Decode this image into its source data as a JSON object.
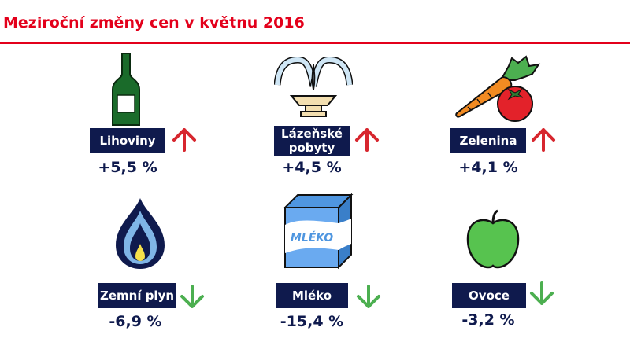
{
  "title": "Meziroční změny cen v květnu 2016",
  "colors": {
    "accent": "#e3001b",
    "label_bg": "#0f1a4d",
    "up": "#d7262e",
    "down": "#4caf50"
  },
  "items": [
    {
      "label": "Lihoviny",
      "value": "+5,5 %",
      "direction": "up",
      "icon": "bottle-icon"
    },
    {
      "label": "Lázeňské pobyty",
      "value": "+4,5 %",
      "direction": "up",
      "icon": "fountain-icon"
    },
    {
      "label": "Zelenina",
      "value": "+4,1 %",
      "direction": "up",
      "icon": "vegetables-icon"
    },
    {
      "label": "Zemní plyn",
      "value": "-6,9 %",
      "direction": "down",
      "icon": "gas-flame-icon"
    },
    {
      "label": "Mléko",
      "value": "-15,4 %",
      "direction": "down",
      "icon": "milk-carton-icon",
      "icon_text": "MLÉKO"
    },
    {
      "label": "Ovoce",
      "value": "-3,2 %",
      "direction": "down",
      "icon": "apple-icon"
    }
  ]
}
